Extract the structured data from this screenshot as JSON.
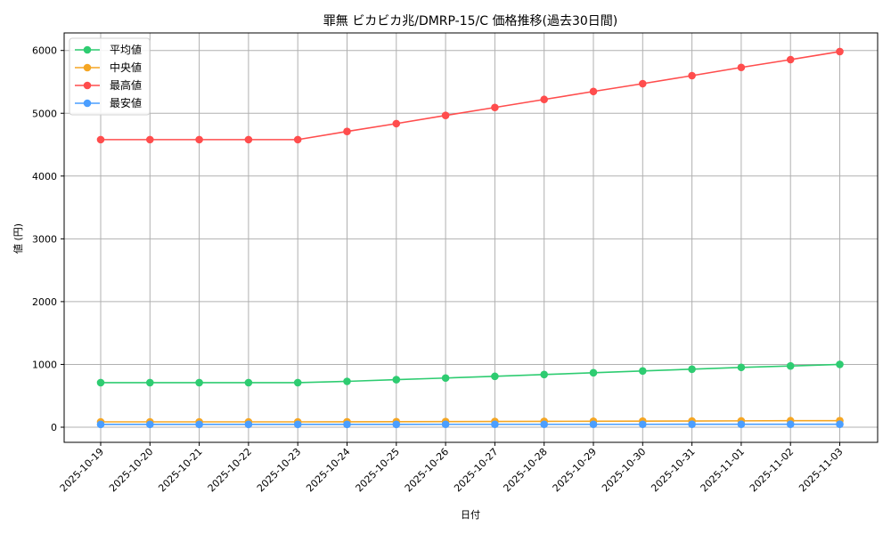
{
  "chart_data": {
    "type": "line",
    "title": "罪無 ビカビカ兆/DMRP-15/C 価格推移(過去30日間)",
    "xlabel": "日付",
    "ylabel": "値 (円)",
    "ylim": [
      -240,
      6290
    ],
    "yticks": [
      0,
      1000,
      2000,
      3000,
      4000,
      5000,
      6000
    ],
    "grid": true,
    "legend_position": "upper left",
    "x": [
      "2025-10-19",
      "2025-10-20",
      "2025-10-21",
      "2025-10-22",
      "2025-10-23",
      "2025-10-24",
      "2025-10-25",
      "2025-10-26",
      "2025-10-27",
      "2025-10-28",
      "2025-10-29",
      "2025-10-30",
      "2025-10-31",
      "2025-11-01",
      "2025-11-02",
      "2025-11-03"
    ],
    "series": [
      {
        "name": "平均値",
        "color": "#2ecc71",
        "values": [
          710,
          710,
          710,
          710,
          710,
          730,
          757,
          783,
          810,
          839,
          867,
          896,
          924,
          953,
          975,
          1000
        ]
      },
      {
        "name": "中央値",
        "color": "#f5a623",
        "values": [
          85,
          85,
          85,
          85,
          85,
          86,
          88,
          89,
          91,
          93,
          95,
          97,
          99,
          101,
          103,
          104
        ]
      },
      {
        "name": "最高値",
        "color": "#ff4d4d",
        "values": [
          4580,
          4580,
          4580,
          4580,
          4580,
          4710,
          4835,
          4965,
          5092,
          5220,
          5347,
          5471,
          5599,
          5730,
          5854,
          5982
        ]
      },
      {
        "name": "最安値",
        "color": "#4a9eff",
        "values": [
          45,
          45,
          45,
          45,
          45,
          45,
          45,
          46,
          46,
          46,
          46,
          46,
          47,
          47,
          47,
          47
        ]
      }
    ]
  }
}
